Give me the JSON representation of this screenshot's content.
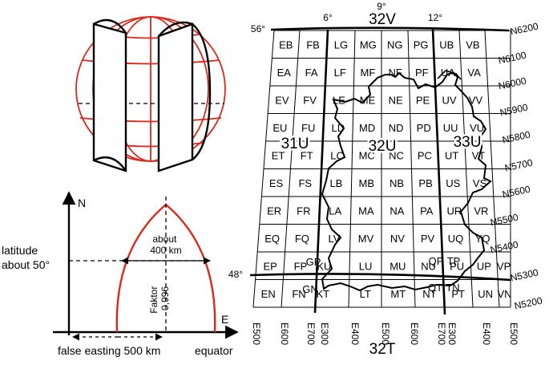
{
  "colors": {
    "ink": "#000000",
    "globe": "#d9291c",
    "background": "#ffffff"
  },
  "diagram": {
    "zones": {
      "top": "32V",
      "center": "32U",
      "left": "31U",
      "right": "33U",
      "bottom": "32T"
    },
    "longitude_labels": {
      "left_corner": "56°",
      "six": "6°",
      "nine": "9°",
      "twelve": "12°",
      "bottom_left": "48°"
    },
    "northings": [
      "N6200",
      "N6100",
      "N6000",
      "N5900",
      "N5800",
      "N5700",
      "N5600",
      "N5500",
      "N5400",
      "N5300",
      "N5200"
    ],
    "eastings": [
      "E500",
      "E600",
      "E700",
      "E300",
      "E400",
      "E500",
      "E600",
      "E700",
      "E300",
      "E400",
      "E500"
    ],
    "squares": [
      [
        "EB",
        "FB",
        "LG",
        "MG",
        "NG",
        "PG",
        "UB",
        "VB"
      ],
      [
        "EA",
        "FA",
        "LF",
        "MF",
        "NF",
        "PF",
        "UA",
        "VA"
      ],
      [
        "EV",
        "FV",
        "LE",
        "ME",
        "NE",
        "PE",
        "UV",
        "VV"
      ],
      [
        "EU",
        "FU",
        "LD",
        "MD",
        "ND",
        "PD",
        "UU",
        "VU"
      ],
      [
        "ET",
        "FT",
        "LC",
        "MC",
        "NC",
        "PC",
        "UT",
        "VT"
      ],
      [
        "ES",
        "FS",
        "LB",
        "MB",
        "NB",
        "PB",
        "US",
        "VS"
      ],
      [
        "ER",
        "FR",
        "LA",
        "MA",
        "NA",
        "PA",
        "UR",
        "VR"
      ],
      [
        "EQ",
        "FQ",
        "LV",
        "MV",
        "NV",
        "PV",
        "UQ",
        "YQ"
      ],
      [
        "EP",
        "FP",
        "KU",
        "LU",
        "MU",
        "NU",
        "PU",
        "UP",
        "VP"
      ],
      [
        "EN",
        "FN",
        "KT",
        "LT",
        "MT",
        "NT",
        "PT",
        "UN",
        "VN"
      ]
    ],
    "edge_squares": {
      "gp": "GP",
      "qp": "QP",
      "tp": "TP",
      "gn": "GN",
      "qt": "QT",
      "tn": "TN"
    },
    "projection": {
      "axis_north": "N",
      "axis_east": "E",
      "latitude": "latitude\nabout 50°",
      "width": "about\n400 km",
      "factor": "Faktor\n0,996",
      "false_easting": "false easting 500 km",
      "equator": "equator"
    }
  }
}
